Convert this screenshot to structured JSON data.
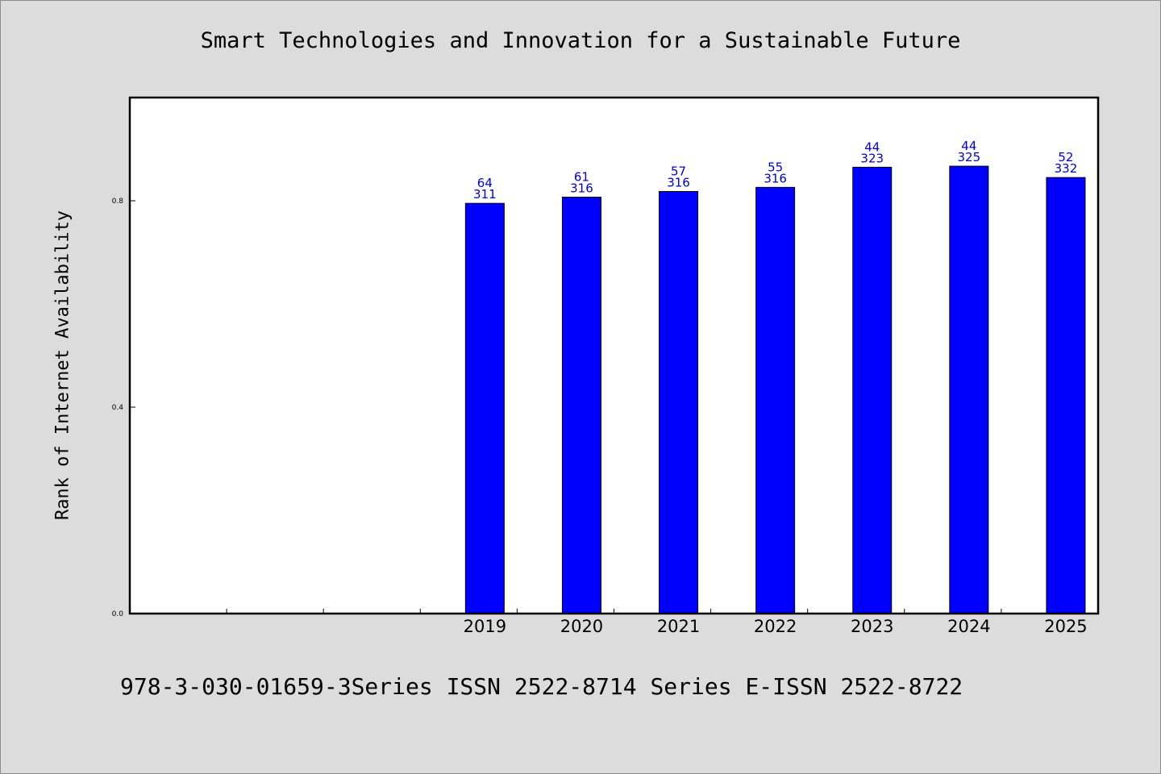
{
  "footer": {
    "text": "978-3-030-01659-3Series ISSN 2522-8714 Series E-ISSN 2522-8722"
  },
  "colors": {
    "bar": "#0000ff",
    "label": "#0000cc",
    "plot_bg": "#ffffff",
    "page_bg": "#dcdcdc"
  },
  "chart_data": {
    "type": "bar",
    "title": "Smart Technologies and Innovation for a Sustainable Future",
    "xlabel": "",
    "ylabel": "Rank of Internet Availability",
    "ylim": [
      0,
      1.0
    ],
    "yticks": [
      0.0,
      0.4,
      0.8
    ],
    "ytick_labels": [
      "0.0",
      "0.4",
      "0.8"
    ],
    "categories": [
      "",
      "",
      "",
      "2019",
      "2020",
      "2021",
      "2022",
      "2023",
      "2024",
      "2025"
    ],
    "values": [
      null,
      null,
      null,
      0.795,
      0.807,
      0.818,
      0.826,
      0.865,
      0.867,
      0.845
    ],
    "label_top": [
      "",
      "",
      "",
      "64",
      "61",
      "57",
      "55",
      "44",
      "44",
      "52"
    ],
    "label_bottom": [
      "",
      "",
      "",
      "311",
      "316",
      "316",
      "316",
      "323",
      "325",
      "332"
    ],
    "grid": false,
    "legend": "none"
  }
}
